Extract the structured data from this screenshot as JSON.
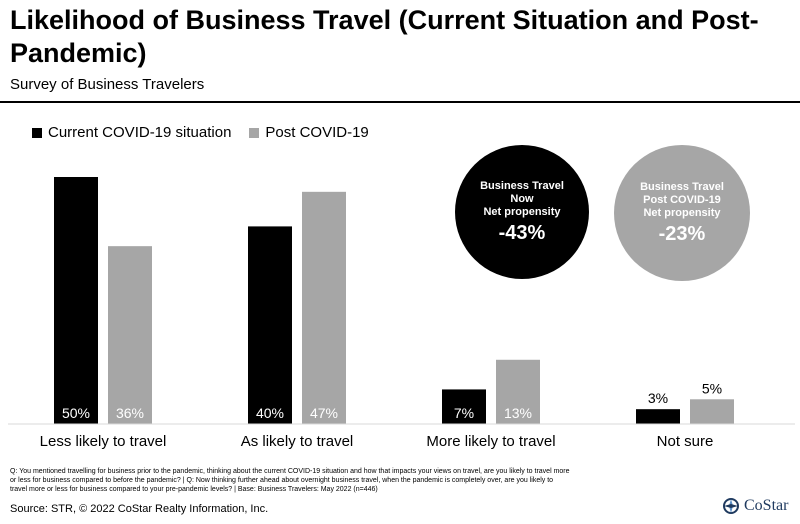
{
  "title": "Likelihood of Business Travel (Current Situation and Post-Pandemic)",
  "subtitle": "Survey of Business Travelers",
  "legend": {
    "current": "Current COVID-19 situation",
    "post": "Post COVID-19"
  },
  "colors": {
    "current": "#000000",
    "post": "#a6a6a6"
  },
  "bubbles": {
    "now": {
      "line1": "Business Travel",
      "line2": "Now",
      "line3": "Net propensity",
      "value": "-43%"
    },
    "post": {
      "line1": "Business Travel",
      "line2": "Post COVID-19",
      "line3": "Net propensity",
      "value": "-23%"
    }
  },
  "chart_data": {
    "type": "bar",
    "categories": [
      "Less likely to travel",
      "As likely to travel",
      "More likely to travel",
      "Not sure"
    ],
    "series": [
      {
        "name": "Current COVID-19 situation",
        "values": [
          50,
          40,
          7,
          3
        ],
        "labels": [
          "50%",
          "40%",
          "7%",
          "3%"
        ]
      },
      {
        "name": "Post COVID-19",
        "values": [
          36,
          47,
          13,
          5
        ],
        "labels": [
          "36%",
          "47%",
          "13%",
          "5%"
        ]
      }
    ],
    "title": "Likelihood of Business Travel (Current Situation and Post-Pandemic)",
    "ylim": [
      0,
      50
    ],
    "grid": false,
    "legend_placement": "top-left"
  },
  "footnote": "Q: You mentioned travelling for business prior to the pandemic, thinking about the current COVID-19 situation and how that impacts your views on travel, are you likely to travel more or less for business compared to before the pandemic? | Q: Now thinking further ahead about overnight business travel, when the pandemic is completely over, are you likely to travel more or less for business compared to your pre-pandemic levels? | Base: Business Travelers: May 2022 (n=446)",
  "source": "Source: STR, © 2022  CoStar Realty Information, Inc.",
  "logo": {
    "text": "CoStar",
    "icon": "costar-logo-icon"
  }
}
